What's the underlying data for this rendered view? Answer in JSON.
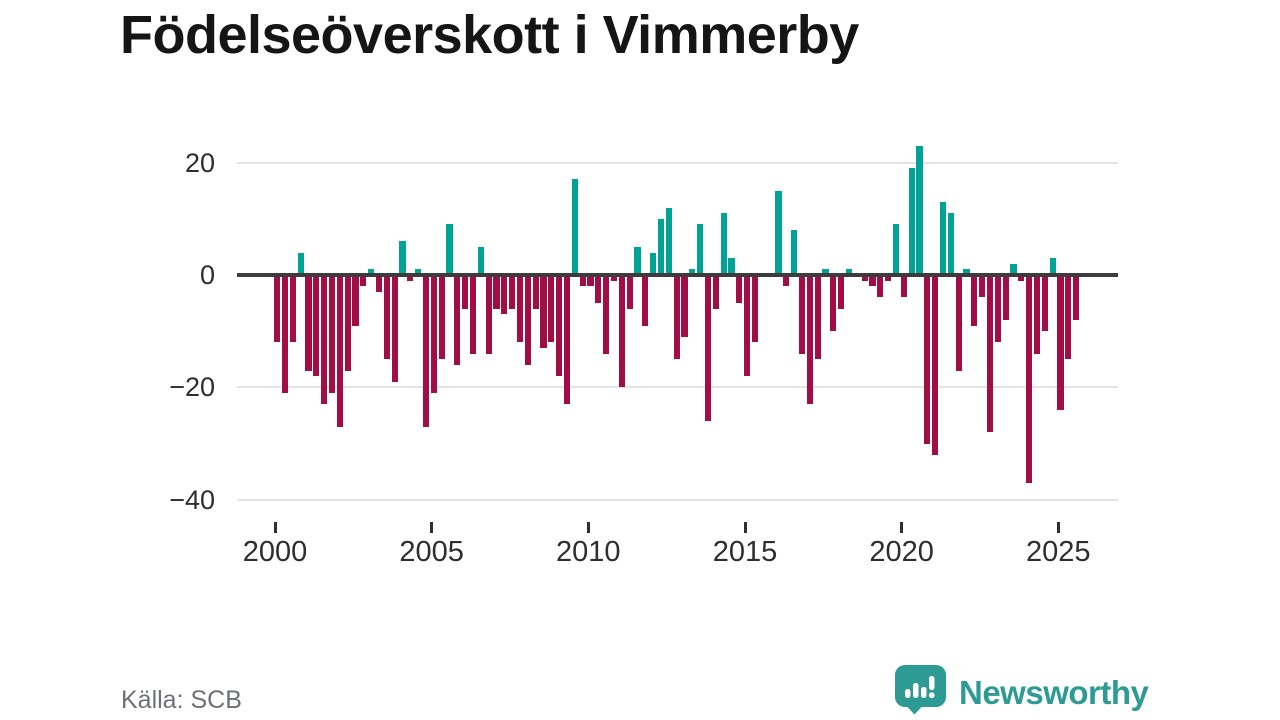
{
  "title": "Födelseöverskott i Vimmerby",
  "source": "Källa: SCB",
  "logo": {
    "wordmark": "Newsworthy",
    "icon": "speech-bubble-bar-chart-icon",
    "color": "#2d9b93"
  },
  "colors": {
    "positive_bar": "#00a396",
    "negative_bar": "#a30d45",
    "zero_line": "#3c3c3c",
    "gridline": "#e3e3e3",
    "axis_text": "#2e2e2e",
    "title_text": "#151515",
    "source_text": "#6d7076",
    "background": "#ffffff"
  },
  "chart_data": {
    "type": "bar",
    "title": "Födelseöverskott i Vimmerby",
    "frequency": "quarterly",
    "x_start": "2000-Q1",
    "x_end": "2025-Q3",
    "values": [
      -12,
      -21,
      -12,
      4,
      -17,
      -18,
      -23,
      -21,
      -27,
      -17,
      -9,
      -2,
      1,
      -3,
      -15,
      -19,
      6,
      -1,
      1,
      -27,
      -21,
      -15,
      9,
      -16,
      -6,
      -14,
      5,
      -14,
      -6,
      -7,
      -6,
      -12,
      -16,
      -6,
      -13,
      -12,
      -18,
      -23,
      17,
      -2,
      -2,
      -5,
      -14,
      -1,
      -20,
      -6,
      5,
      -9,
      4,
      10,
      12,
      -15,
      -11,
      1,
      9,
      -26,
      -6,
      11,
      3,
      -5,
      -18,
      -12,
      0,
      0,
      15,
      -2,
      8,
      -14,
      -23,
      -15,
      1,
      -10,
      -6,
      1,
      0,
      -1,
      -2,
      -4,
      -1,
      9,
      -4,
      19,
      23,
      -30,
      -32,
      13,
      11,
      -17,
      1,
      -9,
      -4,
      -28,
      -12,
      -8,
      2,
      -1,
      -37,
      -14,
      -10,
      3,
      -24,
      -15,
      -8
    ],
    "xtick_labels": [
      "2000",
      "2005",
      "2010",
      "2015",
      "2020",
      "2025"
    ],
    "ytick_values": [
      20,
      0,
      -20,
      -40
    ],
    "ytick_labels": [
      "20",
      "0",
      "−20",
      "−40"
    ],
    "ylim": [
      -40,
      24
    ],
    "grid": "horizontal-only",
    "legend": "none",
    "color_coding": "teal bars = positive values, dark red bars = negative values"
  }
}
